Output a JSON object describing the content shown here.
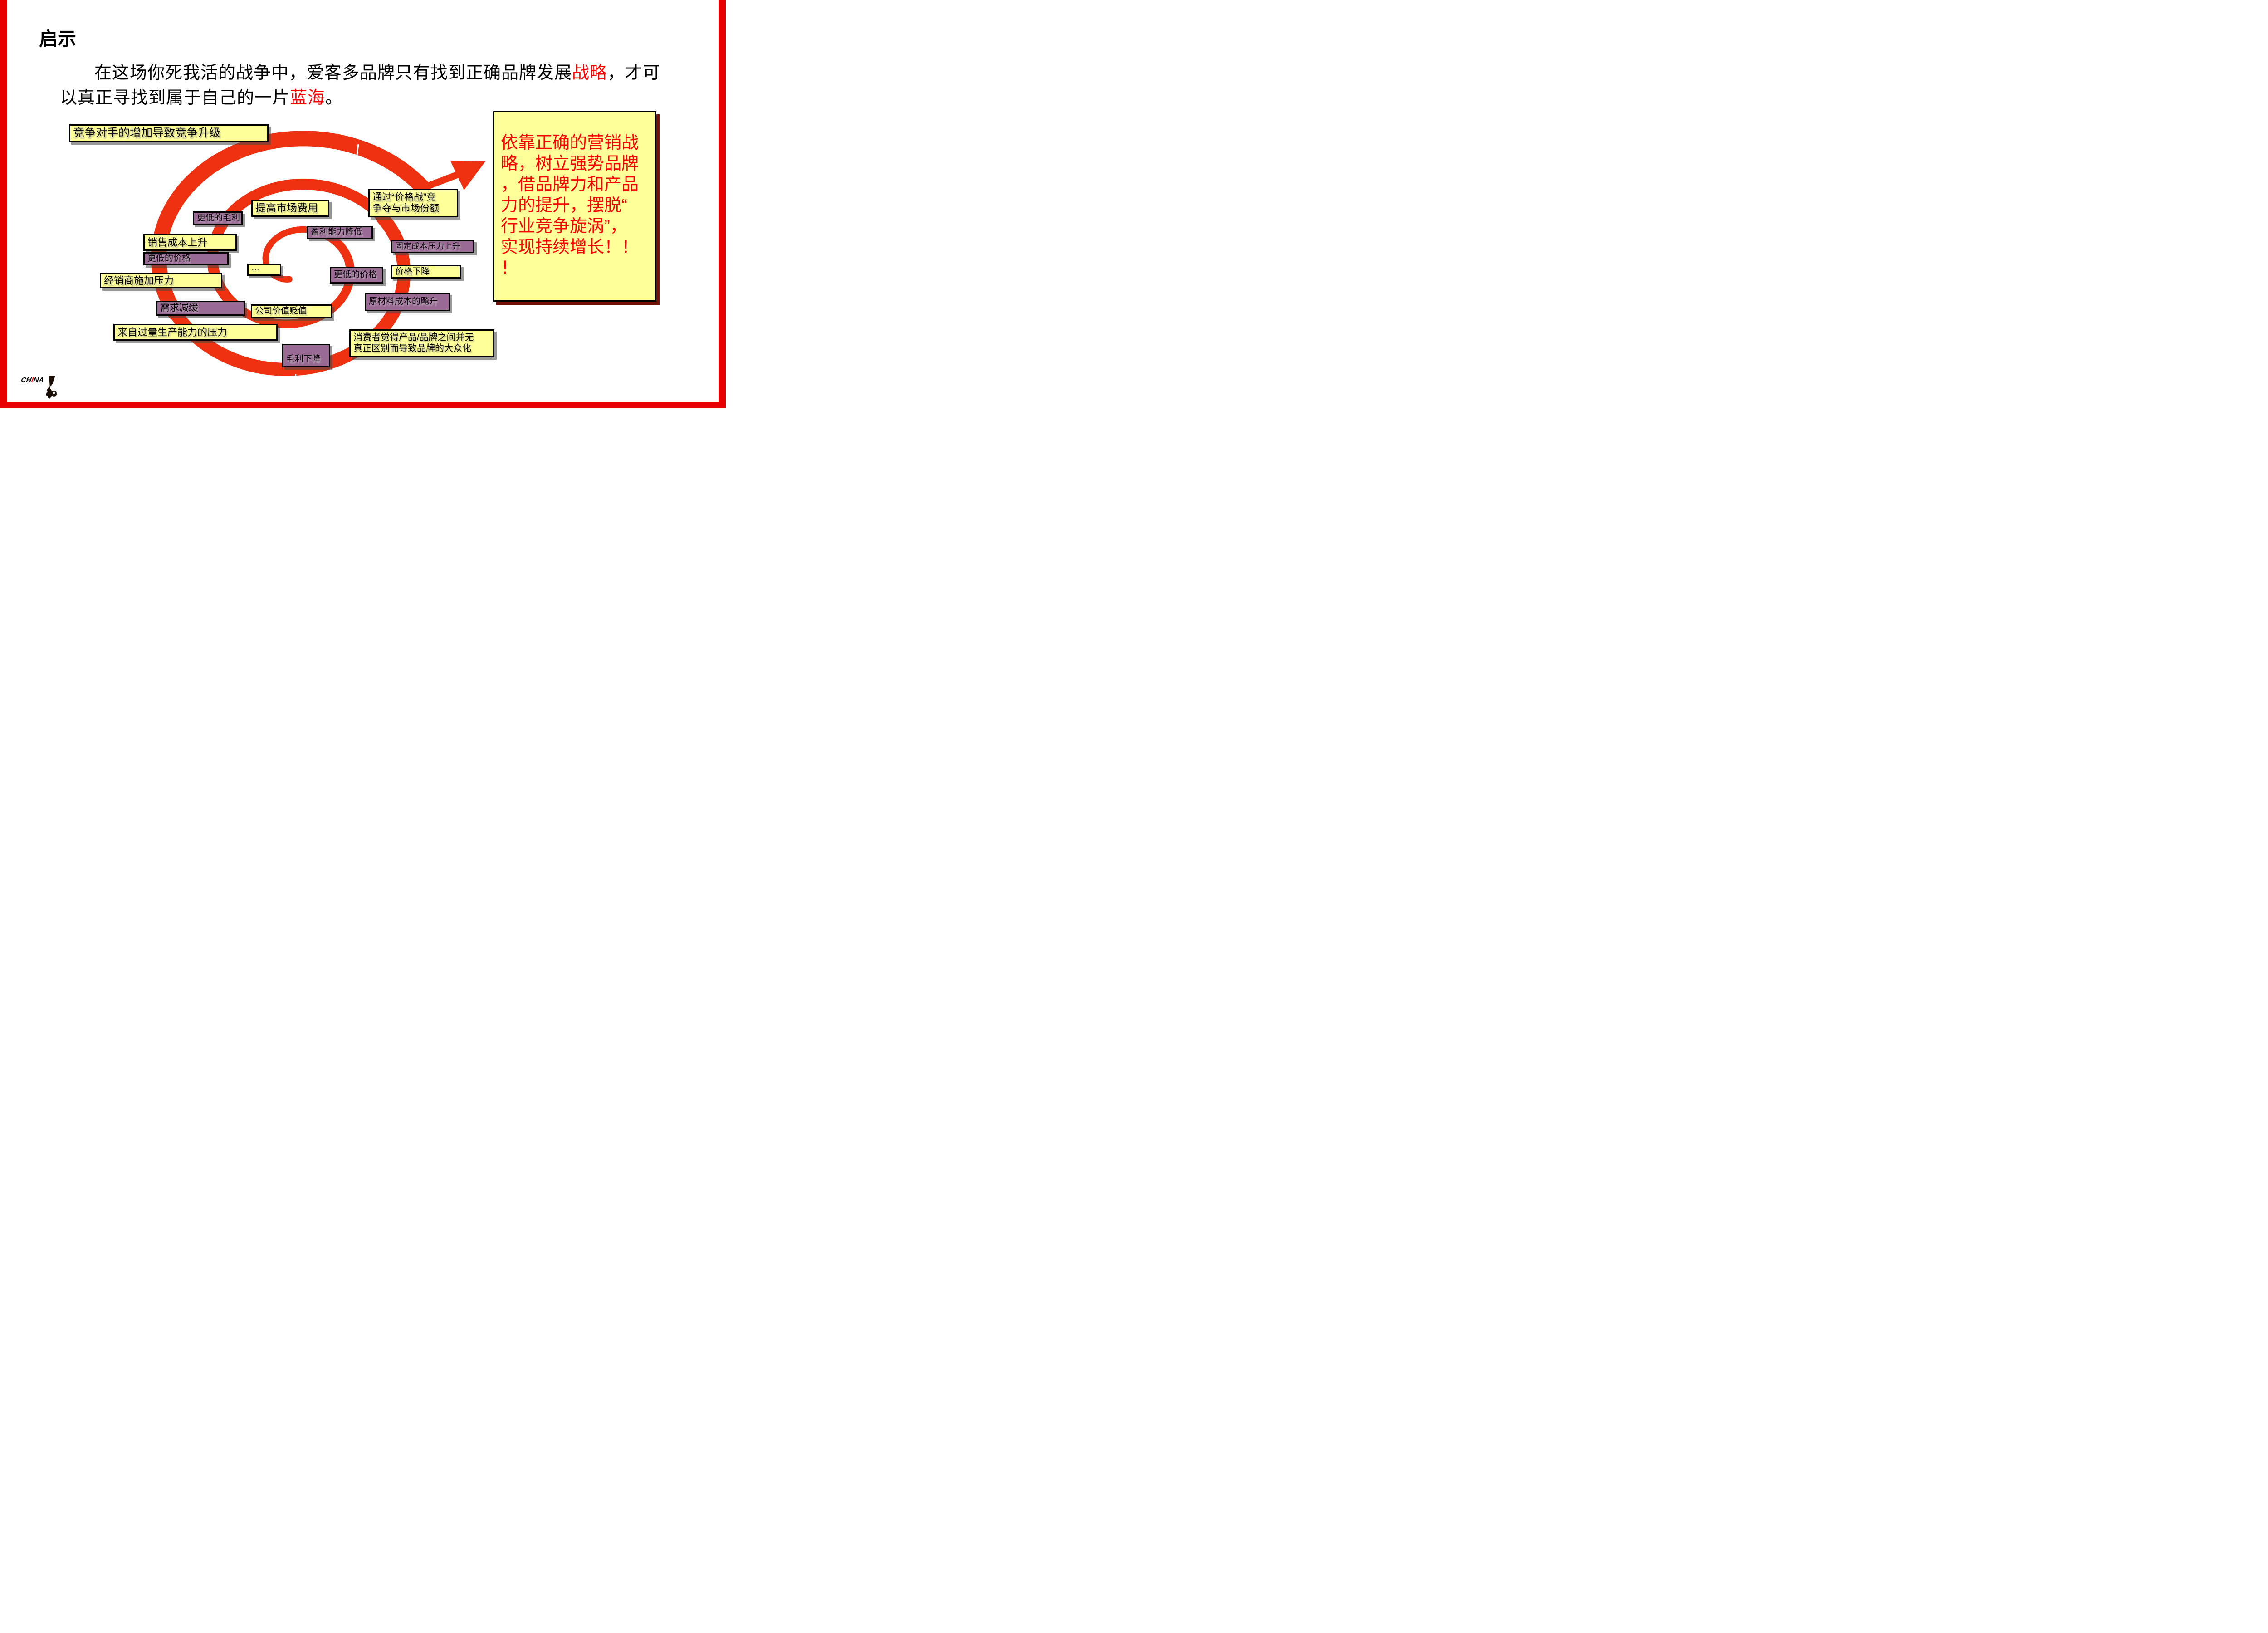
{
  "colors": {
    "accent_red": "#EE3211",
    "frame_red": "#E60000",
    "box_yellow": "#FFFF99",
    "box_purple": "#996B94",
    "highlight_red": "#FF0000"
  },
  "slide": {
    "title": "启示"
  },
  "paragraph": {
    "lines": [
      {
        "segments": [
          {
            "text": "在这场你死我活的战争中，爱客多品牌只有找到正确品牌发展"
          },
          {
            "text": "战略",
            "red": true
          },
          {
            "text": "，才可"
          }
        ]
      },
      {
        "segments": [
          {
            "text": "以真正寻找到属于自己的一片"
          },
          {
            "text": "蓝海",
            "red": true
          },
          {
            "text": "。"
          }
        ]
      }
    ]
  },
  "diagram": {
    "labels": {
      "competitors": {
        "text": "竞争对手的增加导致竞争升级"
      },
      "raise_market_cost": {
        "text": "提高市场费用"
      },
      "lower_margin": {
        "text": "更低的毛利"
      },
      "price_war": {
        "line1": "通过“价格战”竞",
        "line2": "争夺与市场份额"
      },
      "profit_ability_decline": {
        "text": "盈利能力降低"
      },
      "fixed_cost_up": {
        "text": "固定成本压力上升"
      },
      "sales_cost_up": {
        "text": "销售成本上升"
      },
      "lower_price_1": {
        "text": "更低的价格"
      },
      "dealer_pressure": {
        "text": "经销商施加压力"
      },
      "ellipsis": {
        "text": "…"
      },
      "lower_price_2": {
        "text": "更低的价格"
      },
      "price_drop": {
        "text": "价格下降"
      },
      "demand_slowdown": {
        "text": "需求减缓"
      },
      "company_value_drop": {
        "text": "公司价值贬值"
      },
      "raw_material_cost_up": {
        "text": "原材料成本的飚升"
      },
      "overcapacity_pressure": {
        "text": "来自过量生产能力的压力"
      },
      "gross_margin_down": {
        "text": "毛利下降"
      },
      "brand_commoditization": {
        "line1": "消费者觉得产品/品牌之间并无",
        "line2": "真正区别而导致品牌的大众化"
      }
    },
    "callout": {
      "lines": [
        "依靠正确的营销战",
        "略，树立强势品牌",
        "，借品牌力和产品",
        "力的提升，摆脱“",
        "行业竞争旋涡”，",
        "实现持续增长！！",
        "！"
      ]
    }
  },
  "logo": {
    "prefix": "CH",
    "highlight": "I",
    "suffix": "NA"
  }
}
